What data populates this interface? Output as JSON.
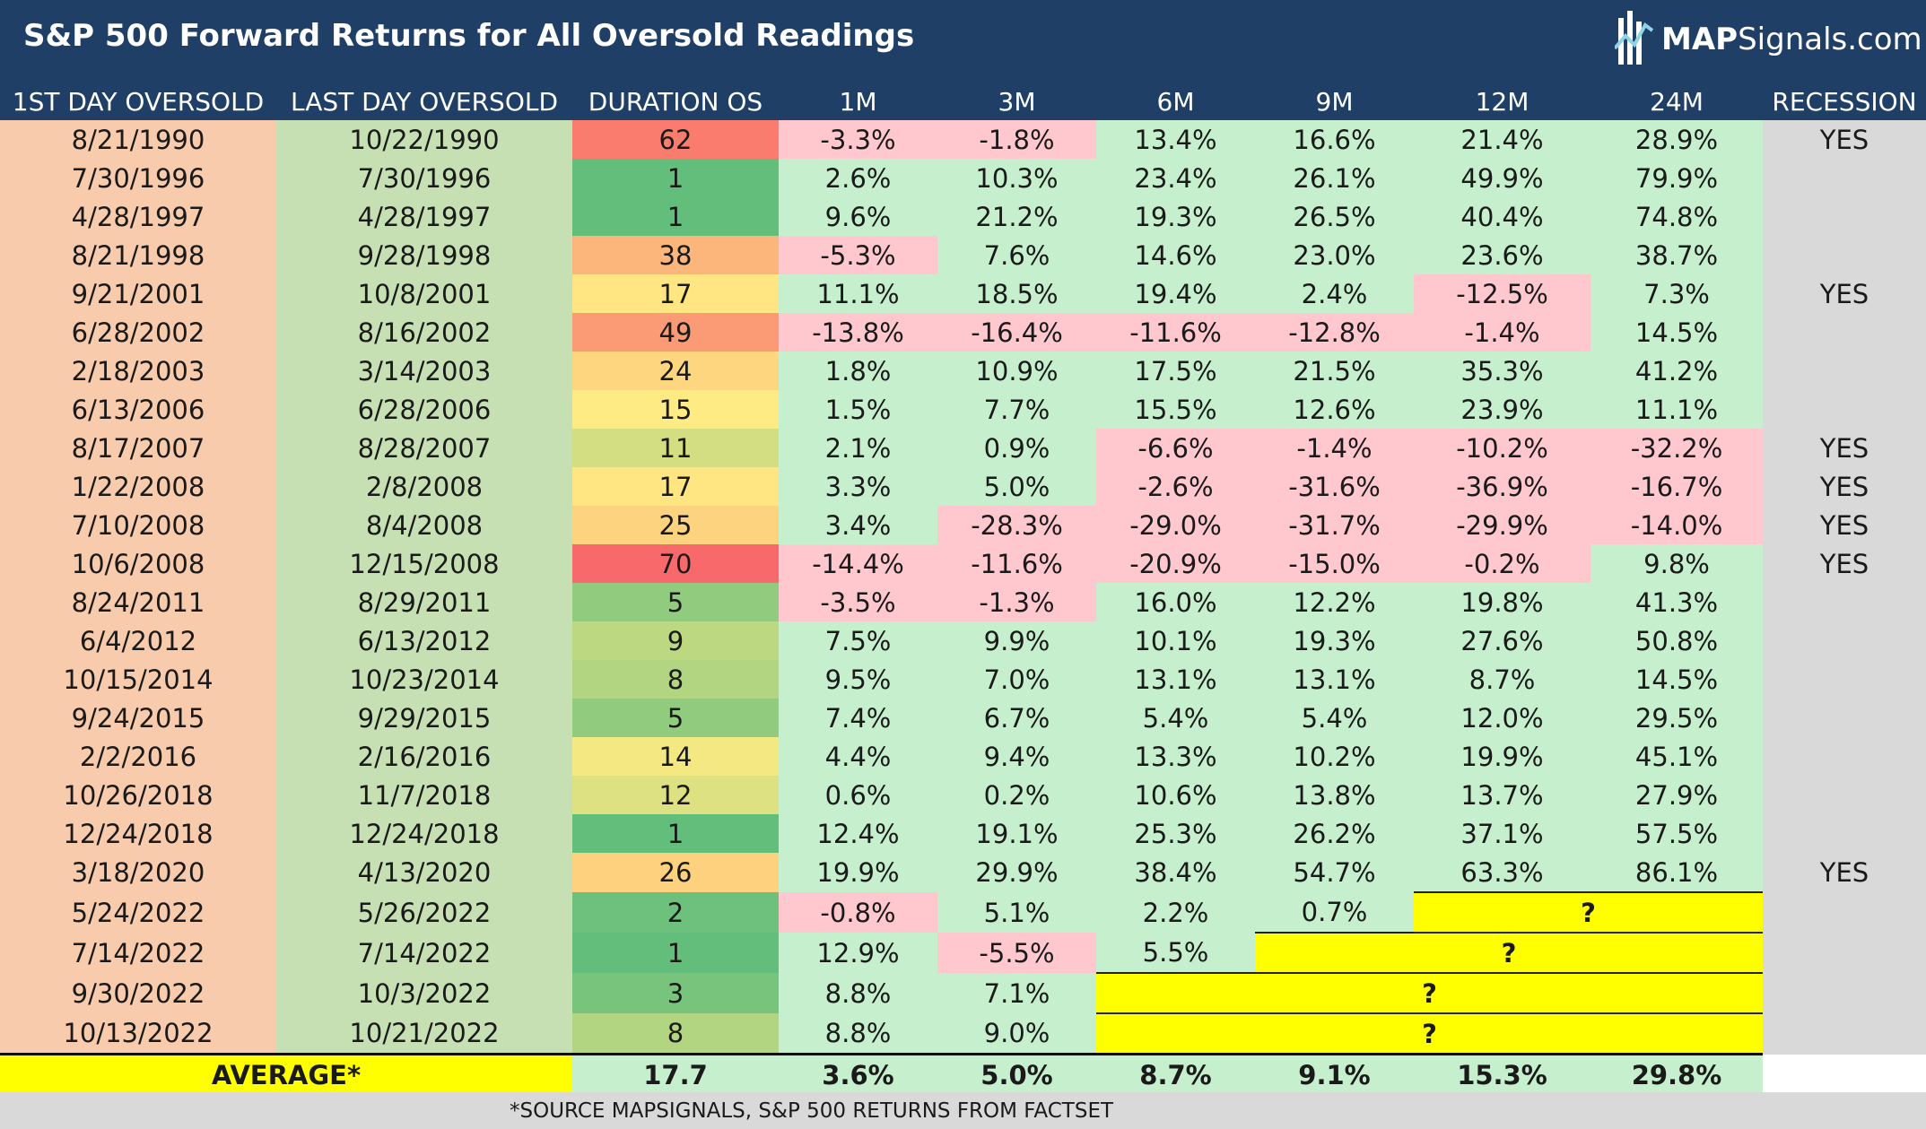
{
  "header": {
    "title": "S&P 500 Forward Returns for All Oversold Readings",
    "logo_bold": "MAP",
    "logo_rest": "Signals.com"
  },
  "chart_data": {
    "type": "table",
    "columns": [
      "1ST DAY OVERSOLD",
      "LAST DAY OVERSOLD",
      "DURATION OS",
      "1M",
      "3M",
      "6M",
      "9M",
      "12M",
      "24M",
      "RECESSION"
    ],
    "rows": [
      {
        "first": "8/21/1990",
        "last": "10/22/1990",
        "duration": 62,
        "returns": [
          "-3.3%",
          "-1.8%",
          "13.4%",
          "16.6%",
          "21.4%",
          "28.9%"
        ],
        "recession": "YES"
      },
      {
        "first": "7/30/1996",
        "last": "7/30/1996",
        "duration": 1,
        "returns": [
          "2.6%",
          "10.3%",
          "23.4%",
          "26.1%",
          "49.9%",
          "79.9%"
        ],
        "recession": ""
      },
      {
        "first": "4/28/1997",
        "last": "4/28/1997",
        "duration": 1,
        "returns": [
          "9.6%",
          "21.2%",
          "19.3%",
          "26.5%",
          "40.4%",
          "74.8%"
        ],
        "recession": ""
      },
      {
        "first": "8/21/1998",
        "last": "9/28/1998",
        "duration": 38,
        "returns": [
          "-5.3%",
          "7.6%",
          "14.6%",
          "23.0%",
          "23.6%",
          "38.7%"
        ],
        "recession": ""
      },
      {
        "first": "9/21/2001",
        "last": "10/8/2001",
        "duration": 17,
        "returns": [
          "11.1%",
          "18.5%",
          "19.4%",
          "2.4%",
          "-12.5%",
          "7.3%"
        ],
        "recession": "YES"
      },
      {
        "first": "6/28/2002",
        "last": "8/16/2002",
        "duration": 49,
        "returns": [
          "-13.8%",
          "-16.4%",
          "-11.6%",
          "-12.8%",
          "-1.4%",
          "14.5%"
        ],
        "recession": ""
      },
      {
        "first": "2/18/2003",
        "last": "3/14/2003",
        "duration": 24,
        "returns": [
          "1.8%",
          "10.9%",
          "17.5%",
          "21.5%",
          "35.3%",
          "41.2%"
        ],
        "recession": ""
      },
      {
        "first": "6/13/2006",
        "last": "6/28/2006",
        "duration": 15,
        "returns": [
          "1.5%",
          "7.7%",
          "15.5%",
          "12.6%",
          "23.9%",
          "11.1%"
        ],
        "recession": ""
      },
      {
        "first": "8/17/2007",
        "last": "8/28/2007",
        "duration": 11,
        "returns": [
          "2.1%",
          "0.9%",
          "-6.6%",
          "-1.4%",
          "-10.2%",
          "-32.2%"
        ],
        "recession": "YES"
      },
      {
        "first": "1/22/2008",
        "last": "2/8/2008",
        "duration": 17,
        "returns": [
          "3.3%",
          "5.0%",
          "-2.6%",
          "-31.6%",
          "-36.9%",
          "-16.7%"
        ],
        "recession": "YES"
      },
      {
        "first": "7/10/2008",
        "last": "8/4/2008",
        "duration": 25,
        "returns": [
          "3.4%",
          "-28.3%",
          "-29.0%",
          "-31.7%",
          "-29.9%",
          "-14.0%"
        ],
        "recession": "YES"
      },
      {
        "first": "10/6/2008",
        "last": "12/15/2008",
        "duration": 70,
        "returns": [
          "-14.4%",
          "-11.6%",
          "-20.9%",
          "-15.0%",
          "-0.2%",
          "9.8%"
        ],
        "recession": "YES"
      },
      {
        "first": "8/24/2011",
        "last": "8/29/2011",
        "duration": 5,
        "returns": [
          "-3.5%",
          "-1.3%",
          "16.0%",
          "12.2%",
          "19.8%",
          "41.3%"
        ],
        "recession": ""
      },
      {
        "first": "6/4/2012",
        "last": "6/13/2012",
        "duration": 9,
        "returns": [
          "7.5%",
          "9.9%",
          "10.1%",
          "19.3%",
          "27.6%",
          "50.8%"
        ],
        "recession": ""
      },
      {
        "first": "10/15/2014",
        "last": "10/23/2014",
        "duration": 8,
        "returns": [
          "9.5%",
          "7.0%",
          "13.1%",
          "13.1%",
          "8.7%",
          "14.5%"
        ],
        "recession": ""
      },
      {
        "first": "9/24/2015",
        "last": "9/29/2015",
        "duration": 5,
        "returns": [
          "7.4%",
          "6.7%",
          "5.4%",
          "5.4%",
          "12.0%",
          "29.5%"
        ],
        "recession": ""
      },
      {
        "first": "2/2/2016",
        "last": "2/16/2016",
        "duration": 14,
        "returns": [
          "4.4%",
          "9.4%",
          "13.3%",
          "10.2%",
          "19.9%",
          "45.1%"
        ],
        "recession": ""
      },
      {
        "first": "10/26/2018",
        "last": "11/7/2018",
        "duration": 12,
        "returns": [
          "0.6%",
          "0.2%",
          "10.6%",
          "13.8%",
          "13.7%",
          "27.9%"
        ],
        "recession": ""
      },
      {
        "first": "12/24/2018",
        "last": "12/24/2018",
        "duration": 1,
        "returns": [
          "12.4%",
          "19.1%",
          "25.3%",
          "26.2%",
          "37.1%",
          "57.5%"
        ],
        "recession": ""
      },
      {
        "first": "3/18/2020",
        "last": "4/13/2020",
        "duration": 26,
        "returns": [
          "19.9%",
          "29.9%",
          "38.4%",
          "54.7%",
          "63.3%",
          "86.1%"
        ],
        "recession": "YES"
      },
      {
        "first": "5/24/2022",
        "last": "5/26/2022",
        "duration": 2,
        "returns": [
          "-0.8%",
          "5.1%",
          "2.2%",
          "0.7%"
        ],
        "unknown": "?",
        "recession": ""
      },
      {
        "first": "7/14/2022",
        "last": "7/14/2022",
        "duration": 1,
        "returns": [
          "12.9%",
          "-5.5%",
          "5.5%"
        ],
        "unknown": "?",
        "recession": ""
      },
      {
        "first": "9/30/2022",
        "last": "10/3/2022",
        "duration": 3,
        "returns": [
          "8.8%",
          "7.1%"
        ],
        "unknown": "?",
        "recession": ""
      },
      {
        "first": "10/13/2022",
        "last": "10/21/2022",
        "duration": 8,
        "returns": [
          "8.8%",
          "9.0%"
        ],
        "unknown": "?",
        "recession": ""
      }
    ],
    "average": {
      "label": "AVERAGE*",
      "duration": "17.7",
      "returns": [
        "3.6%",
        "5.0%",
        "8.7%",
        "9.1%",
        "15.3%",
        "29.8%"
      ]
    },
    "duration_scale": {
      "min": 1,
      "max": 70,
      "low_color": "#63be7b",
      "mid_color": "#ffeb84",
      "high_color": "#f8696b"
    }
  },
  "footer": {
    "source": "*SOURCE MAPSIGNALS, S&P 500 RETURNS FROM FACTSET"
  },
  "colors": {
    "header_bg": "#1f3f66",
    "first_col": "#f8cbad",
    "last_col": "#c6e0b4",
    "positive_bg": "#c6efce",
    "positive_text": "#006100",
    "negative_bg": "#ffc7ce",
    "negative_text": "#9c0006",
    "unknown_bg": "#ffff00",
    "unknown_text": "#ff0000",
    "recession_bg": "#d9d9d9"
  }
}
